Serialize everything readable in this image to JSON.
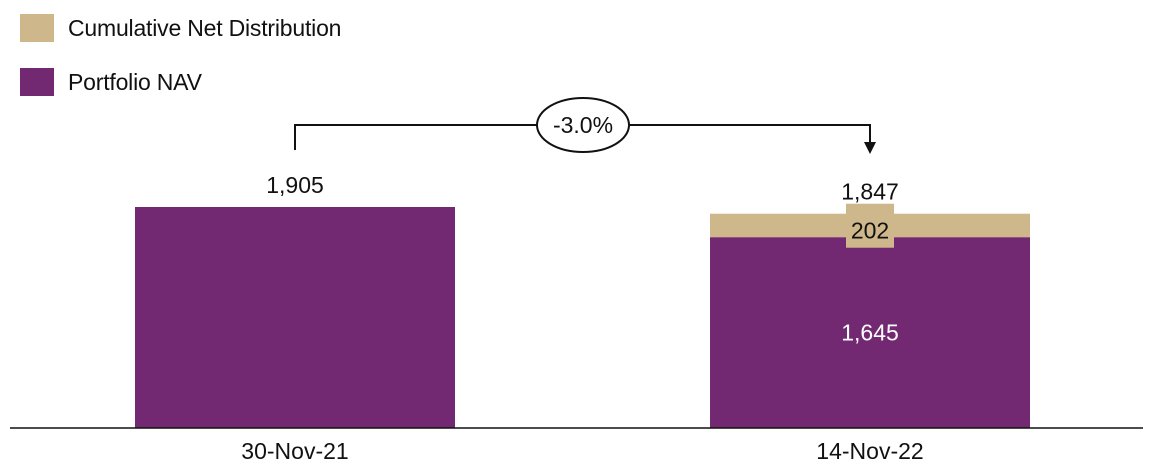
{
  "chart_data": {
    "type": "bar",
    "stacked": true,
    "categories": [
      "30-Nov-21",
      "14-Nov-22"
    ],
    "series": [
      {
        "name": "Portfolio NAV",
        "values": [
          1905,
          1645
        ],
        "color": "#722972"
      },
      {
        "name": "Cumulative Net Distribution",
        "values": [
          0,
          202
        ],
        "color": "#CDB78B"
      }
    ],
    "totals": [
      1905,
      1847
    ],
    "data_labels": {
      "totals": [
        "1,905",
        "1,847"
      ],
      "segments": {
        "nav_2": "1,645",
        "distribution_2": "202"
      }
    },
    "annotation": {
      "text": "-3.0%",
      "from_category": "30-Nov-21",
      "to_category": "14-Nov-22"
    },
    "legend": {
      "position": "top-left",
      "items": [
        {
          "label": "Cumulative Net Distribution",
          "color": "#CDB78B"
        },
        {
          "label": "Portfolio NAV",
          "color": "#722972"
        }
      ]
    },
    "title": "",
    "xlabel": "",
    "ylabel": "",
    "ylim": [
      0,
      1905
    ],
    "grid": false
  }
}
